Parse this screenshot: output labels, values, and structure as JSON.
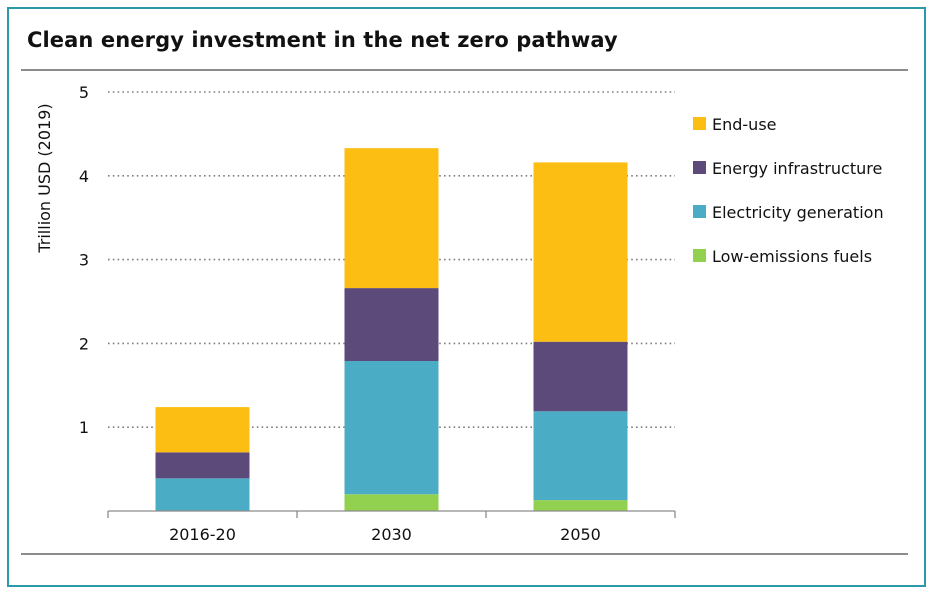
{
  "title": "Clean energy investment in the net zero pathway",
  "chart_data": {
    "type": "bar",
    "stacked": true,
    "title": "Clean energy investment in the net zero pathway",
    "xlabel": "",
    "ylabel": "Trillion USD (2019)",
    "ylim": [
      0,
      5
    ],
    "yticks": [
      1,
      2,
      3,
      4,
      5
    ],
    "grid": "horizontal dotted",
    "legend_position": "right",
    "categories": [
      "2016-20",
      "2030",
      "2050"
    ],
    "series": [
      {
        "name": "Low-emissions fuels",
        "color": "#92d050",
        "values": [
          0.0,
          0.2,
          0.13
        ]
      },
      {
        "name": "Electricity generation",
        "color": "#4bacc6",
        "values": [
          0.39,
          1.59,
          1.06
        ]
      },
      {
        "name": "Energy infrastructure",
        "color": "#5c4a7a",
        "values": [
          0.31,
          0.87,
          0.83
        ]
      },
      {
        "name": "End-use",
        "color": "#fcbe13",
        "values": [
          0.54,
          1.67,
          2.14
        ]
      }
    ],
    "legend_order": [
      "End-use",
      "Energy infrastructure",
      "Electricity generation",
      "Low-emissions fuels"
    ]
  }
}
